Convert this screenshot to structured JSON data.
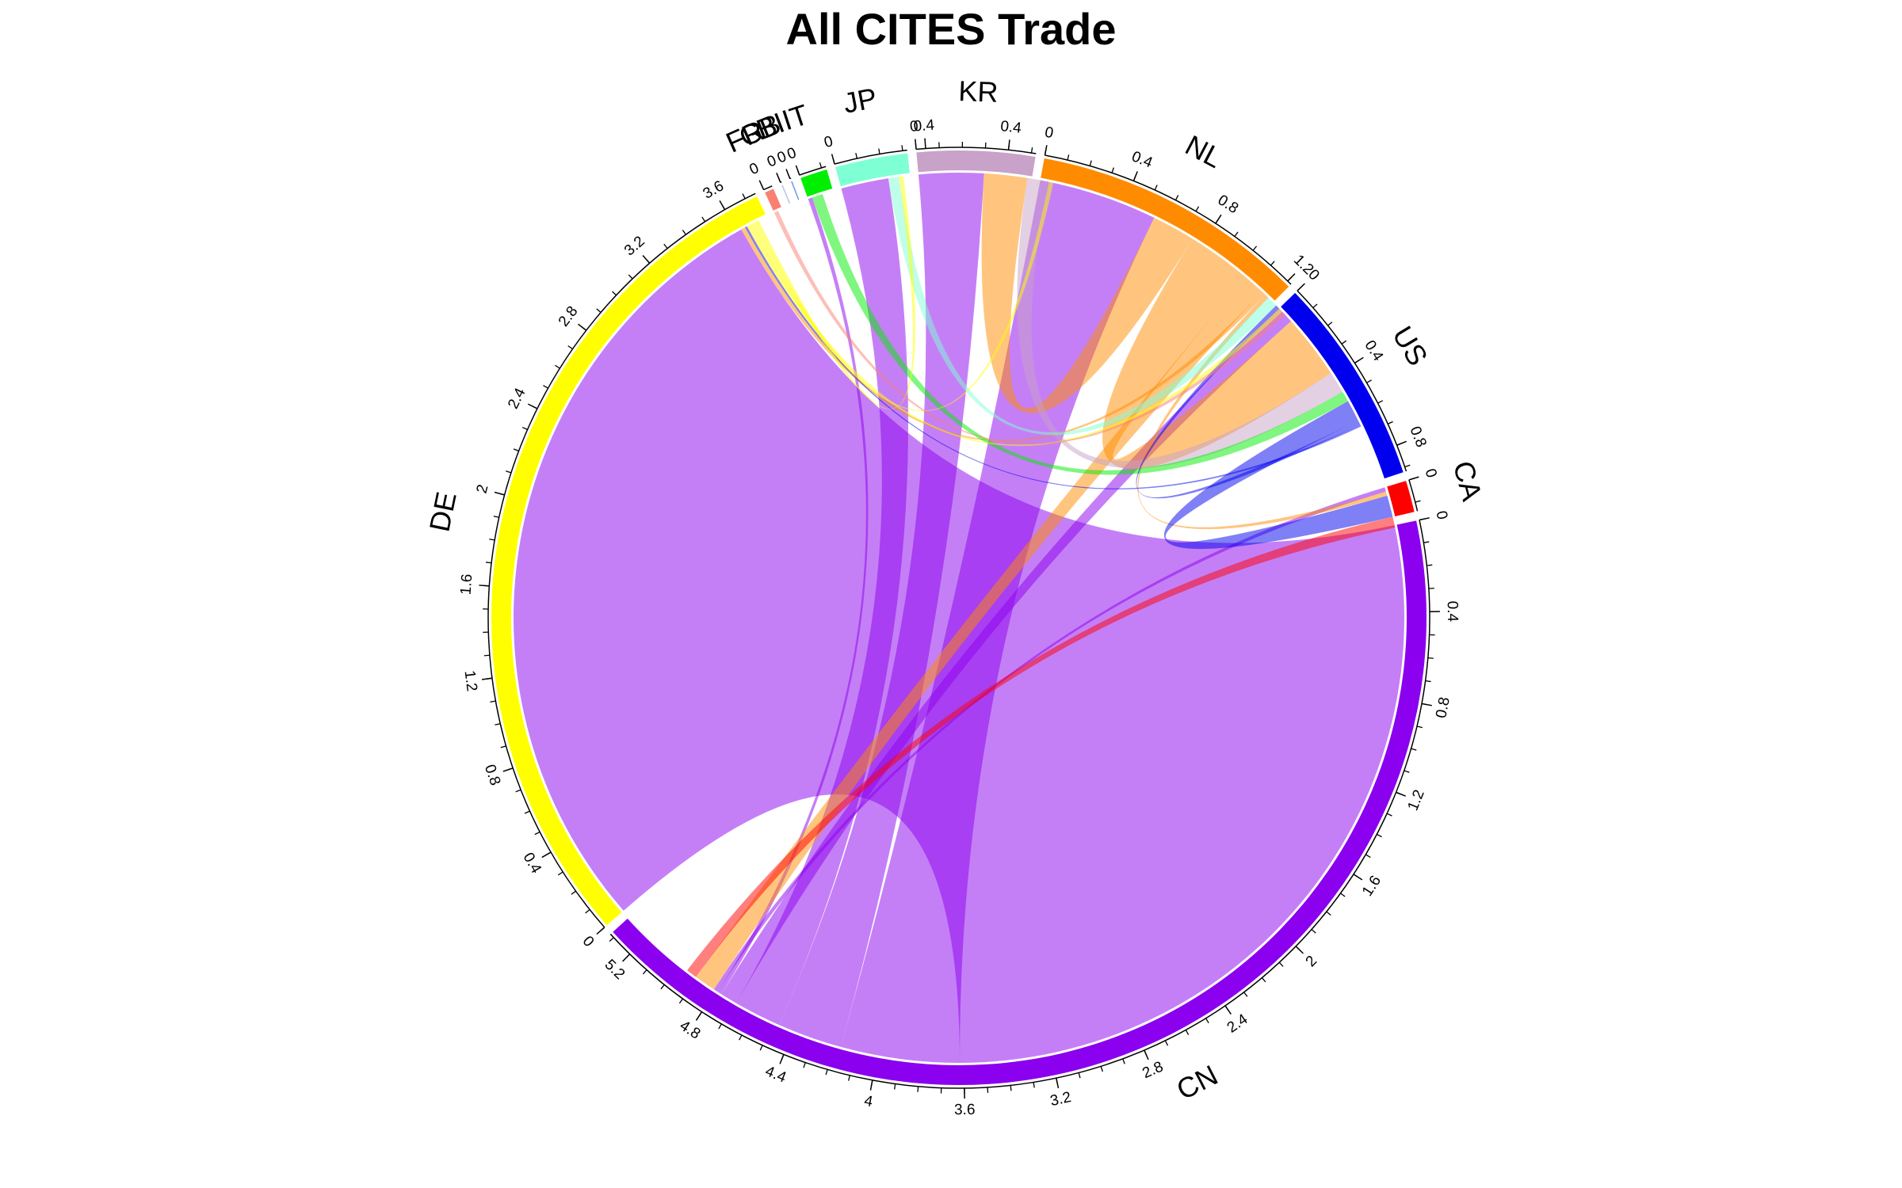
{
  "chart_data": {
    "type": "chord",
    "title": "All CITES Trade",
    "sectors": [
      {
        "name": "DE",
        "total": 3.75,
        "color": "#FFFF00",
        "ticks": [
          0,
          0.4,
          0.8,
          1.2,
          1.6,
          2,
          2.4,
          2.8,
          3.2,
          3.6
        ]
      },
      {
        "name": "FR",
        "total": 0.04,
        "color": "#FA8072",
        "ticks": [
          0
        ]
      },
      {
        "name": "GB",
        "total": 0.005,
        "color": "#B0C4DE",
        "ticks": [
          0
        ]
      },
      {
        "name": "BI",
        "total": 0.005,
        "color": "#6495ED",
        "ticks": [
          0
        ]
      },
      {
        "name": "IT",
        "total": 0.12,
        "color": "#00EE00",
        "ticks": [
          0
        ]
      },
      {
        "name": "JP",
        "total": 0.32,
        "color": "#7FFFD4",
        "ticks": [
          0,
          0.4
        ]
      },
      {
        "name": "KR",
        "total": 0.52,
        "color": "#C8A2C8",
        "ticks": [
          0,
          0.4
        ]
      },
      {
        "name": "NL",
        "total": 1.22,
        "color": "#FF8C00",
        "ticks": [
          0,
          0.4,
          0.8,
          1.2
        ]
      },
      {
        "name": "US",
        "total": 0.92,
        "color": "#0000EE",
        "ticks": [
          0,
          0.4,
          0.8
        ]
      },
      {
        "name": "CA",
        "total": 0.14,
        "color": "#FF0000",
        "ticks": [
          0
        ]
      },
      {
        "name": "CN",
        "total": 5.32,
        "color": "#8B00EE",
        "ticks": [
          0,
          0.4,
          0.8,
          1.2,
          1.6,
          2,
          2.4,
          2.8,
          3.2,
          3.6,
          4,
          4.4,
          4.8,
          5.2
        ]
      }
    ],
    "links": [
      {
        "from": "CN",
        "to": "DE",
        "value": 3.62
      },
      {
        "from": "CN",
        "to": "NL",
        "value": 0.55
      },
      {
        "from": "CN",
        "to": "KR",
        "value": 0.3
      },
      {
        "from": "CN",
        "to": "JP",
        "value": 0.22
      },
      {
        "from": "CN",
        "to": "US",
        "value": 0.08
      },
      {
        "from": "CN",
        "to": "IT",
        "value": 0.02
      },
      {
        "from": "CN",
        "to": "CA",
        "value": 0.02
      },
      {
        "from": "NL",
        "to": "KR",
        "value": 0.2
      },
      {
        "from": "NL",
        "to": "US",
        "value": 0.3
      },
      {
        "from": "NL",
        "to": "CN",
        "value": 0.1
      },
      {
        "from": "NL",
        "to": "DE",
        "value": 0.02
      },
      {
        "from": "NL",
        "to": "CA",
        "value": 0.02
      },
      {
        "from": "KR",
        "to": "US",
        "value": 0.1
      },
      {
        "from": "JP",
        "to": "NL",
        "value": 0.05
      },
      {
        "from": "IT",
        "to": "US",
        "value": 0.05
      },
      {
        "from": "US",
        "to": "CA",
        "value": 0.1
      },
      {
        "from": "US",
        "to": "NL",
        "value": 0.02
      },
      {
        "from": "US",
        "to": "DE",
        "value": 0.01
      },
      {
        "from": "DE",
        "to": "NL",
        "value": 0.02
      },
      {
        "from": "DE",
        "to": "KR",
        "value": 0.02
      },
      {
        "from": "DE",
        "to": "JP",
        "value": 0.02
      },
      {
        "from": "FR",
        "to": "NL",
        "value": 0.02
      },
      {
        "from": "CA",
        "to": "CN",
        "value": 0.05
      }
    ]
  }
}
